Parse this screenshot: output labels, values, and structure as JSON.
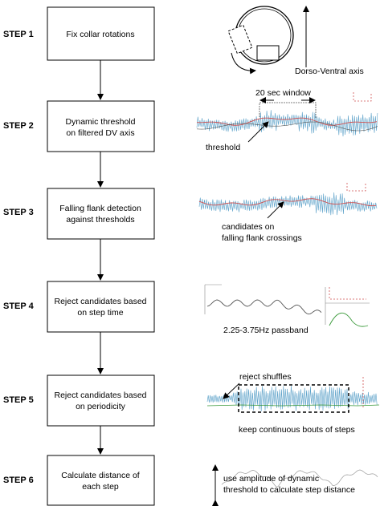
{
  "steps": [
    {
      "label": "STEP 1",
      "lines": [
        "Fix collar rotations"
      ]
    },
    {
      "label": "STEP 2",
      "lines": [
        "Dynamic threshold",
        "on filtered DV axis"
      ]
    },
    {
      "label": "STEP 3",
      "lines": [
        "Falling flank detection",
        "against thresholds"
      ]
    },
    {
      "label": "STEP 4",
      "lines": [
        "Reject candidates based",
        "on step time"
      ]
    },
    {
      "label": "STEP 5",
      "lines": [
        "Reject candidates based",
        "on periodicity"
      ]
    },
    {
      "label": "STEP 6",
      "lines": [
        "Calculate distance of",
        "each step"
      ]
    }
  ],
  "annotations": {
    "dv_axis": "Dorso-Ventral axis",
    "window": "20 sec window",
    "threshold": "threshold",
    "candidates_1": "candidates on",
    "candidates_2": "falling flank crossings",
    "passband": "2.25-3.75Hz passband",
    "reject": "reject shuffles",
    "keep": "keep continuous bouts of steps",
    "amp_1": "use amplitude of dynamic",
    "amp_2": "threshold to calculate step distance"
  },
  "colors": {
    "signal_blue": "#5aa0c8",
    "threshold_red": "#d05050",
    "filter_green": "#3a9a3a",
    "dark_curve": "#555555"
  }
}
